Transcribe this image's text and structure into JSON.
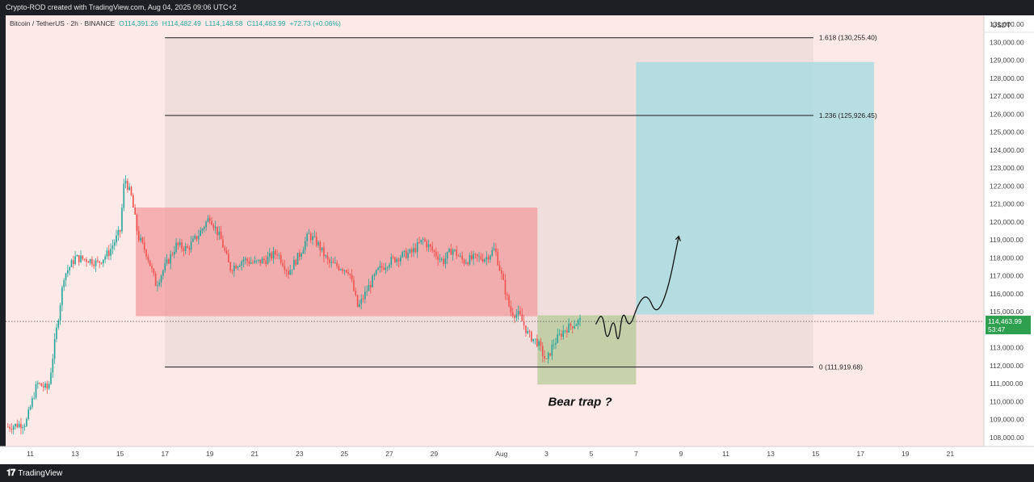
{
  "header": {
    "creator_line": "Crypto-ROD created with TradingView.com, Aug 04, 2025 09:06 UTC+2"
  },
  "footer": {
    "brand": "TradingView",
    "brand_icon": "tradingview-logo-icon"
  },
  "symbol_bar": {
    "symbol": "Bitcoin / TetherUS · 2h · BINANCE",
    "open": "O114,391.26",
    "high": "H114,482.49",
    "low": "L114,148.58",
    "close": "C114,463.99",
    "change": "+72.73 (+0.06%)"
  },
  "chart_data": {
    "type": "candlestick",
    "currency_label": "USDT",
    "y_range": [
      107500,
      131500
    ],
    "x_axis": {
      "ticks": [
        "11",
        "13",
        "15",
        "17",
        "19",
        "21",
        "23",
        "25",
        "27",
        "29",
        "Aug",
        "3",
        "5",
        "7",
        "9",
        "11",
        "13",
        "15",
        "17",
        "19",
        "21"
      ],
      "tick_days": [
        10,
        12,
        14,
        16,
        18,
        20,
        22,
        24,
        26,
        28,
        31,
        33,
        35,
        37,
        39,
        41,
        43,
        45,
        47,
        49,
        51
      ],
      "day_units": "days from Jul 1, 2025"
    },
    "y_ticks": [
      "131,000.00",
      "130,000.00",
      "129,000.00",
      "128,000.00",
      "127,000.00",
      "126,000.00",
      "125,000.00",
      "124,000.00",
      "123,000.00",
      "122,000.00",
      "121,000.00",
      "120,000.00",
      "119,000.00",
      "118,000.00",
      "117,000.00",
      "116,000.00",
      "115,000.00",
      "114,000.00",
      "113,000.00",
      "112,000.00",
      "111,000.00",
      "110,000.00",
      "109,000.00",
      "108,000.00"
    ],
    "y_tick_values": [
      131000,
      130000,
      129000,
      128000,
      127000,
      126000,
      125000,
      124000,
      123000,
      122000,
      121000,
      120000,
      119000,
      118000,
      117000,
      116000,
      115000,
      114000,
      113000,
      112000,
      111000,
      110000,
      109000,
      108000
    ],
    "last_price": {
      "label": "114,463.99",
      "countdown": "53:47",
      "value": 114463.99,
      "color": "#2e9e4f"
    },
    "colors": {
      "up": "#26a69a",
      "down": "#ef5350",
      "background": "#fde9e8"
    },
    "anchors": [
      {
        "day": 9.0,
        "price": 108600
      },
      {
        "day": 9.8,
        "price": 108800
      },
      {
        "day": 10.3,
        "price": 111000
      },
      {
        "day": 10.8,
        "price": 110700
      },
      {
        "day": 11.1,
        "price": 113400
      },
      {
        "day": 11.5,
        "price": 117000
      },
      {
        "day": 12.0,
        "price": 118000
      },
      {
        "day": 12.6,
        "price": 117900
      },
      {
        "day": 13.0,
        "price": 117700
      },
      {
        "day": 13.5,
        "price": 118300
      },
      {
        "day": 14.0,
        "price": 119500
      },
      {
        "day": 14.2,
        "price": 122500
      },
      {
        "day": 14.5,
        "price": 121400
      },
      {
        "day": 14.8,
        "price": 119200
      },
      {
        "day": 15.2,
        "price": 118200
      },
      {
        "day": 15.6,
        "price": 116500
      },
      {
        "day": 16.0,
        "price": 117500
      },
      {
        "day": 16.5,
        "price": 118700
      },
      {
        "day": 17.0,
        "price": 118500
      },
      {
        "day": 17.5,
        "price": 119300
      },
      {
        "day": 18.0,
        "price": 120300
      },
      {
        "day": 18.5,
        "price": 119000
      },
      {
        "day": 18.9,
        "price": 117400
      },
      {
        "day": 19.5,
        "price": 117900
      },
      {
        "day": 20.0,
        "price": 117700
      },
      {
        "day": 20.5,
        "price": 117900
      },
      {
        "day": 21.0,
        "price": 118300
      },
      {
        "day": 21.5,
        "price": 117200
      },
      {
        "day": 22.0,
        "price": 118200
      },
      {
        "day": 22.4,
        "price": 119300
      },
      {
        "day": 22.8,
        "price": 118800
      },
      {
        "day": 23.3,
        "price": 117700
      },
      {
        "day": 23.8,
        "price": 117500
      },
      {
        "day": 24.2,
        "price": 117300
      },
      {
        "day": 24.6,
        "price": 115200
      },
      {
        "day": 25.0,
        "price": 116200
      },
      {
        "day": 25.5,
        "price": 117300
      },
      {
        "day": 26.0,
        "price": 117800
      },
      {
        "day": 26.5,
        "price": 118100
      },
      {
        "day": 27.0,
        "price": 118300
      },
      {
        "day": 27.5,
        "price": 119000
      },
      {
        "day": 28.0,
        "price": 118300
      },
      {
        "day": 28.4,
        "price": 117800
      },
      {
        "day": 28.8,
        "price": 118500
      },
      {
        "day": 29.3,
        "price": 117800
      },
      {
        "day": 29.8,
        "price": 118000
      },
      {
        "day": 30.3,
        "price": 118000
      },
      {
        "day": 30.7,
        "price": 118500
      },
      {
        "day": 31.0,
        "price": 117000
      },
      {
        "day": 31.4,
        "price": 115000
      },
      {
        "day": 31.8,
        "price": 114800
      },
      {
        "day": 32.2,
        "price": 113700
      },
      {
        "day": 32.6,
        "price": 113300
      },
      {
        "day": 33.0,
        "price": 112200
      },
      {
        "day": 33.3,
        "price": 113200
      },
      {
        "day": 33.8,
        "price": 114000
      },
      {
        "day": 34.2,
        "price": 114300
      },
      {
        "day": 34.5,
        "price": 114500
      }
    ],
    "fibonacci": [
      {
        "ratio": "1.618",
        "label": "1.618 (130,255.40)",
        "price": 130255.4
      },
      {
        "ratio": "1.236",
        "label": "1.236 (125,926.45)",
        "price": 125926.45
      },
      {
        "ratio": "0",
        "label": "0 (111,919.68)",
        "price": 111919.68
      }
    ],
    "fib_zone": {
      "start_day": 16.0,
      "end_day": 44.9,
      "top": 130255.4,
      "bottom": 111919.68
    },
    "range_box": {
      "start_day": 14.7,
      "end_day": 32.6,
      "top": 120800,
      "bottom": 114750,
      "color": "#f28b8e"
    },
    "accumulation_box": {
      "start_day": 32.6,
      "end_day": 37.0,
      "top": 114800,
      "bottom": 110950,
      "color": "#b5c99a"
    },
    "target_box": {
      "start_day": 37.0,
      "end_day": 47.6,
      "top": 128900,
      "bottom": 114850,
      "color": "#a6dbe2"
    },
    "projection_path": [
      {
        "day": 35.2,
        "price": 114300
      },
      {
        "day": 35.5,
        "price": 115000
      },
      {
        "day": 35.7,
        "price": 113200
      },
      {
        "day": 36.0,
        "price": 114800
      },
      {
        "day": 36.2,
        "price": 113000
      },
      {
        "day": 36.4,
        "price": 115200
      },
      {
        "day": 36.7,
        "price": 114000
      },
      {
        "day": 37.1,
        "price": 115500
      },
      {
        "day": 37.5,
        "price": 116000
      },
      {
        "day": 37.9,
        "price": 114800
      },
      {
        "day": 38.4,
        "price": 116100
      },
      {
        "day": 38.9,
        "price": 119200
      }
    ],
    "annotation": {
      "text": "Bear trap ?",
      "day": 34.5,
      "price": 110000
    }
  }
}
